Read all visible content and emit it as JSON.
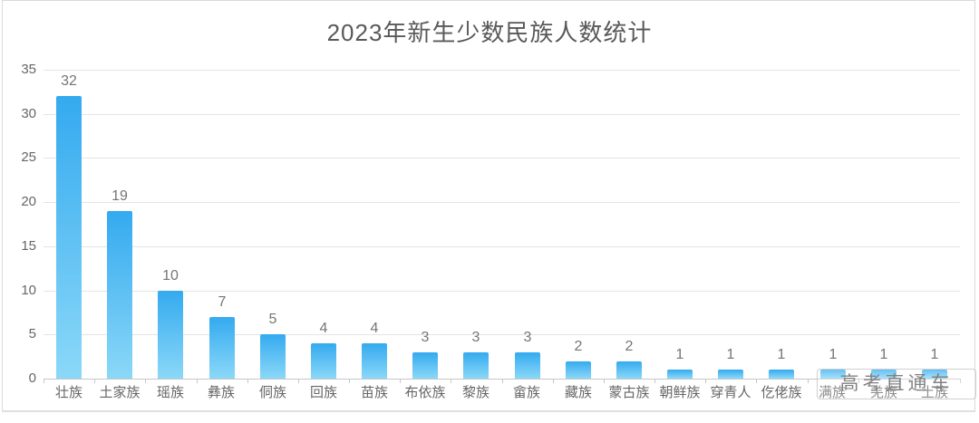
{
  "page": {
    "watermark_text": "高考直通车"
  },
  "chart_data": {
    "type": "bar",
    "title": "2023年新生少数民族人数统计",
    "categories": [
      "壮族",
      "土家族",
      "瑶族",
      "彝族",
      "侗族",
      "回族",
      "苗族",
      "布依族",
      "黎族",
      "畲族",
      "藏族",
      "蒙古族",
      "朝鲜族",
      "穿青人",
      "仡佬族",
      "满族",
      "羌族",
      "土族"
    ],
    "values": [
      32,
      19,
      10,
      7,
      5,
      4,
      4,
      3,
      3,
      3,
      2,
      2,
      1,
      1,
      1,
      1,
      1,
      1
    ],
    "xlabel": "",
    "ylabel": "",
    "ylim": [
      0,
      35
    ],
    "yticks": [
      0,
      5,
      10,
      15,
      20,
      25,
      30,
      35
    ],
    "grid": "horizontal gridlines on",
    "legend": "none",
    "data_labels": "value shown above each bar",
    "colors": {
      "bar_gradient_top": "#34aaef",
      "bar_gradient_bottom": "#8bd8f8",
      "title_text": "#595959",
      "axis_text": "#666666",
      "value_label_text": "#757575",
      "gridline": "#e4e4e4",
      "axis_line": "#c6c6c6",
      "watermark_text": "#828282"
    }
  }
}
